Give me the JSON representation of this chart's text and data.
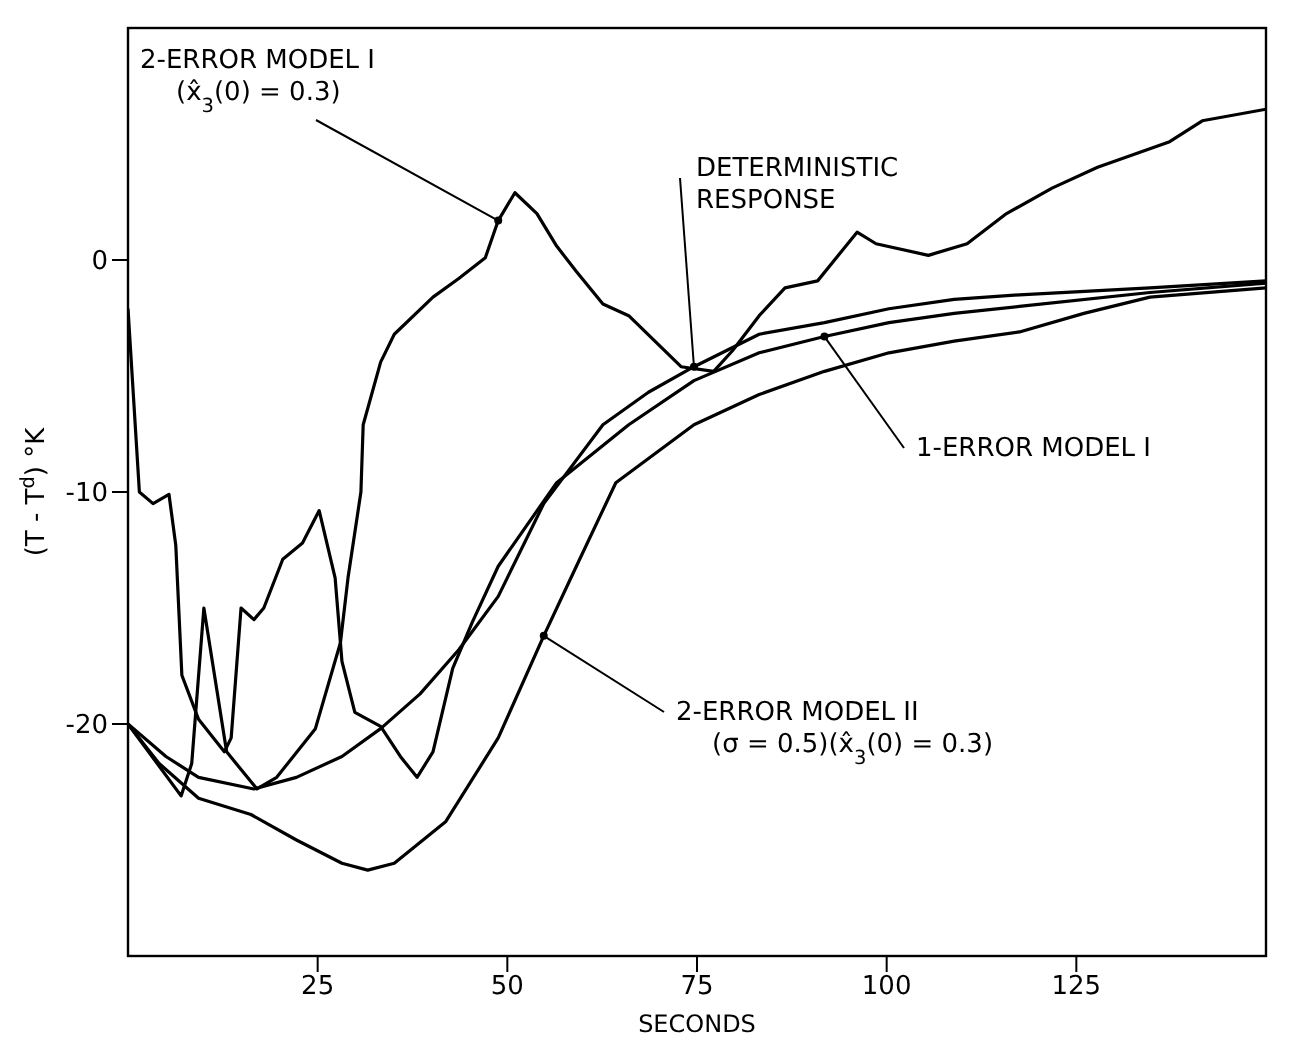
{
  "chart_data": {
    "type": "line",
    "xlabel": "SECONDS",
    "ylabel": "(T - T$^{d}$) °K",
    "xlim": [
      0,
      150
    ],
    "ylim": [
      -30,
      10
    ],
    "xticks": [
      25,
      50,
      75,
      100,
      125
    ],
    "yticks": [
      -20,
      -10,
      0
    ],
    "grid": false,
    "legend": false,
    "marker": "none",
    "line_style": "solid",
    "series": [
      {
        "name": "2-ERROR MODEL I\n(x̂$_{3}$(0) = 0.3)",
        "color": "#000000",
        "x": [
          0,
          7,
          8.4,
          10,
          13,
          17,
          19.6,
          24.7,
          28,
          29,
          30.7,
          31,
          33.3,
          35.1,
          40.2,
          43.6,
          47.1,
          48.8,
          51,
          53.9,
          56.5,
          59.1,
          62.6,
          66,
          72.9,
          77.2,
          79.7,
          83.2,
          86.6,
          90.9,
          96.1,
          98.6,
          105.5,
          110.6,
          115.8,
          121.8,
          127.8,
          137.3,
          141.6,
          150
        ],
        "values": [
          -20,
          -23.1,
          -21.7,
          -15,
          -21.2,
          -22.8,
          -22.3,
          -20.2,
          -16.5,
          -13.7,
          -10,
          -7.1,
          -4.4,
          -3.2,
          -1.6,
          -0.8,
          0.1,
          1.7,
          2.9,
          2,
          0.6,
          -0.5,
          -1.9,
          -2.4,
          -4.6,
          -4.8,
          -3.9,
          -2.4,
          -1.2,
          -0.9,
          1.2,
          0.7,
          0.2,
          0.7,
          2,
          3.1,
          4,
          5.1,
          6,
          6.5
        ]
      },
      {
        "name": "DETERMINISTIC\nRESPONSE",
        "color": "#000000",
        "x": [
          0,
          5,
          9.3,
          16.6,
          22.2,
          28.2,
          33.3,
          38.5,
          43.6,
          48.8,
          54.8,
          62.6,
          68.6,
          74.6,
          83.2,
          91.8,
          100.3,
          108.9,
          117.5,
          134.7,
          150
        ],
        "values": [
          -20,
          -21.4,
          -22.3,
          -22.8,
          -22.3,
          -21.4,
          -20.2,
          -18.7,
          -16.8,
          -14.5,
          -10.5,
          -7.1,
          -5.7,
          -4.6,
          -3.2,
          -2.7,
          -2.1,
          -1.7,
          -1.5,
          -1.2,
          -0.9
        ]
      },
      {
        "name": "1-ERROR MODEL I",
        "color": "#000000",
        "x": [
          0,
          1.5,
          3.3,
          5.4,
          6.3,
          7.1,
          9.3,
          12.7,
          13.6,
          14.9,
          16.6,
          17.9,
          20.4,
          23,
          25.2,
          27.3,
          28.2,
          29.9,
          33.3,
          35.9,
          38.1,
          40.2,
          42.8,
          45.4,
          48.8,
          56.5,
          66,
          74.6,
          83.2,
          91.8,
          100.3,
          108.9,
          117.5,
          134.7,
          150
        ],
        "values": [
          -2.1,
          -10,
          -10.5,
          -10.1,
          -12.3,
          -17.9,
          -19.8,
          -21.2,
          -20.6,
          -15,
          -15.5,
          -15,
          -12.9,
          -12.2,
          -10.8,
          -13.7,
          -17.3,
          -19.5,
          -20.1,
          -21.4,
          -22.3,
          -21.2,
          -17.6,
          -15.6,
          -13.2,
          -9.6,
          -7.1,
          -5.2,
          -4,
          -3.3,
          -2.7,
          -2.3,
          -2,
          -1.4,
          -1
        ]
      },
      {
        "name": "2-ERROR MODEL II\n(σ = 0.5)(x̂$_{3}$(0) = 0.3)",
        "color": "#000000",
        "x": [
          0,
          4.1,
          9.3,
          16.2,
          22.2,
          28.2,
          31.6,
          35.1,
          41.9,
          48.8,
          54.8,
          59.1,
          64.3,
          74.6,
          83.2,
          91.8,
          100.3,
          108.9,
          117.5,
          126,
          134.7,
          150
        ],
        "values": [
          -20,
          -21.7,
          -23.2,
          -23.9,
          -25,
          -26,
          -26.3,
          -26,
          -24.2,
          -20.6,
          -16.2,
          -13.2,
          -9.6,
          -7.1,
          -5.8,
          -4.8,
          -4,
          -3.5,
          -3.1,
          -2.3,
          -1.6,
          -1.2
        ]
      }
    ]
  }
}
